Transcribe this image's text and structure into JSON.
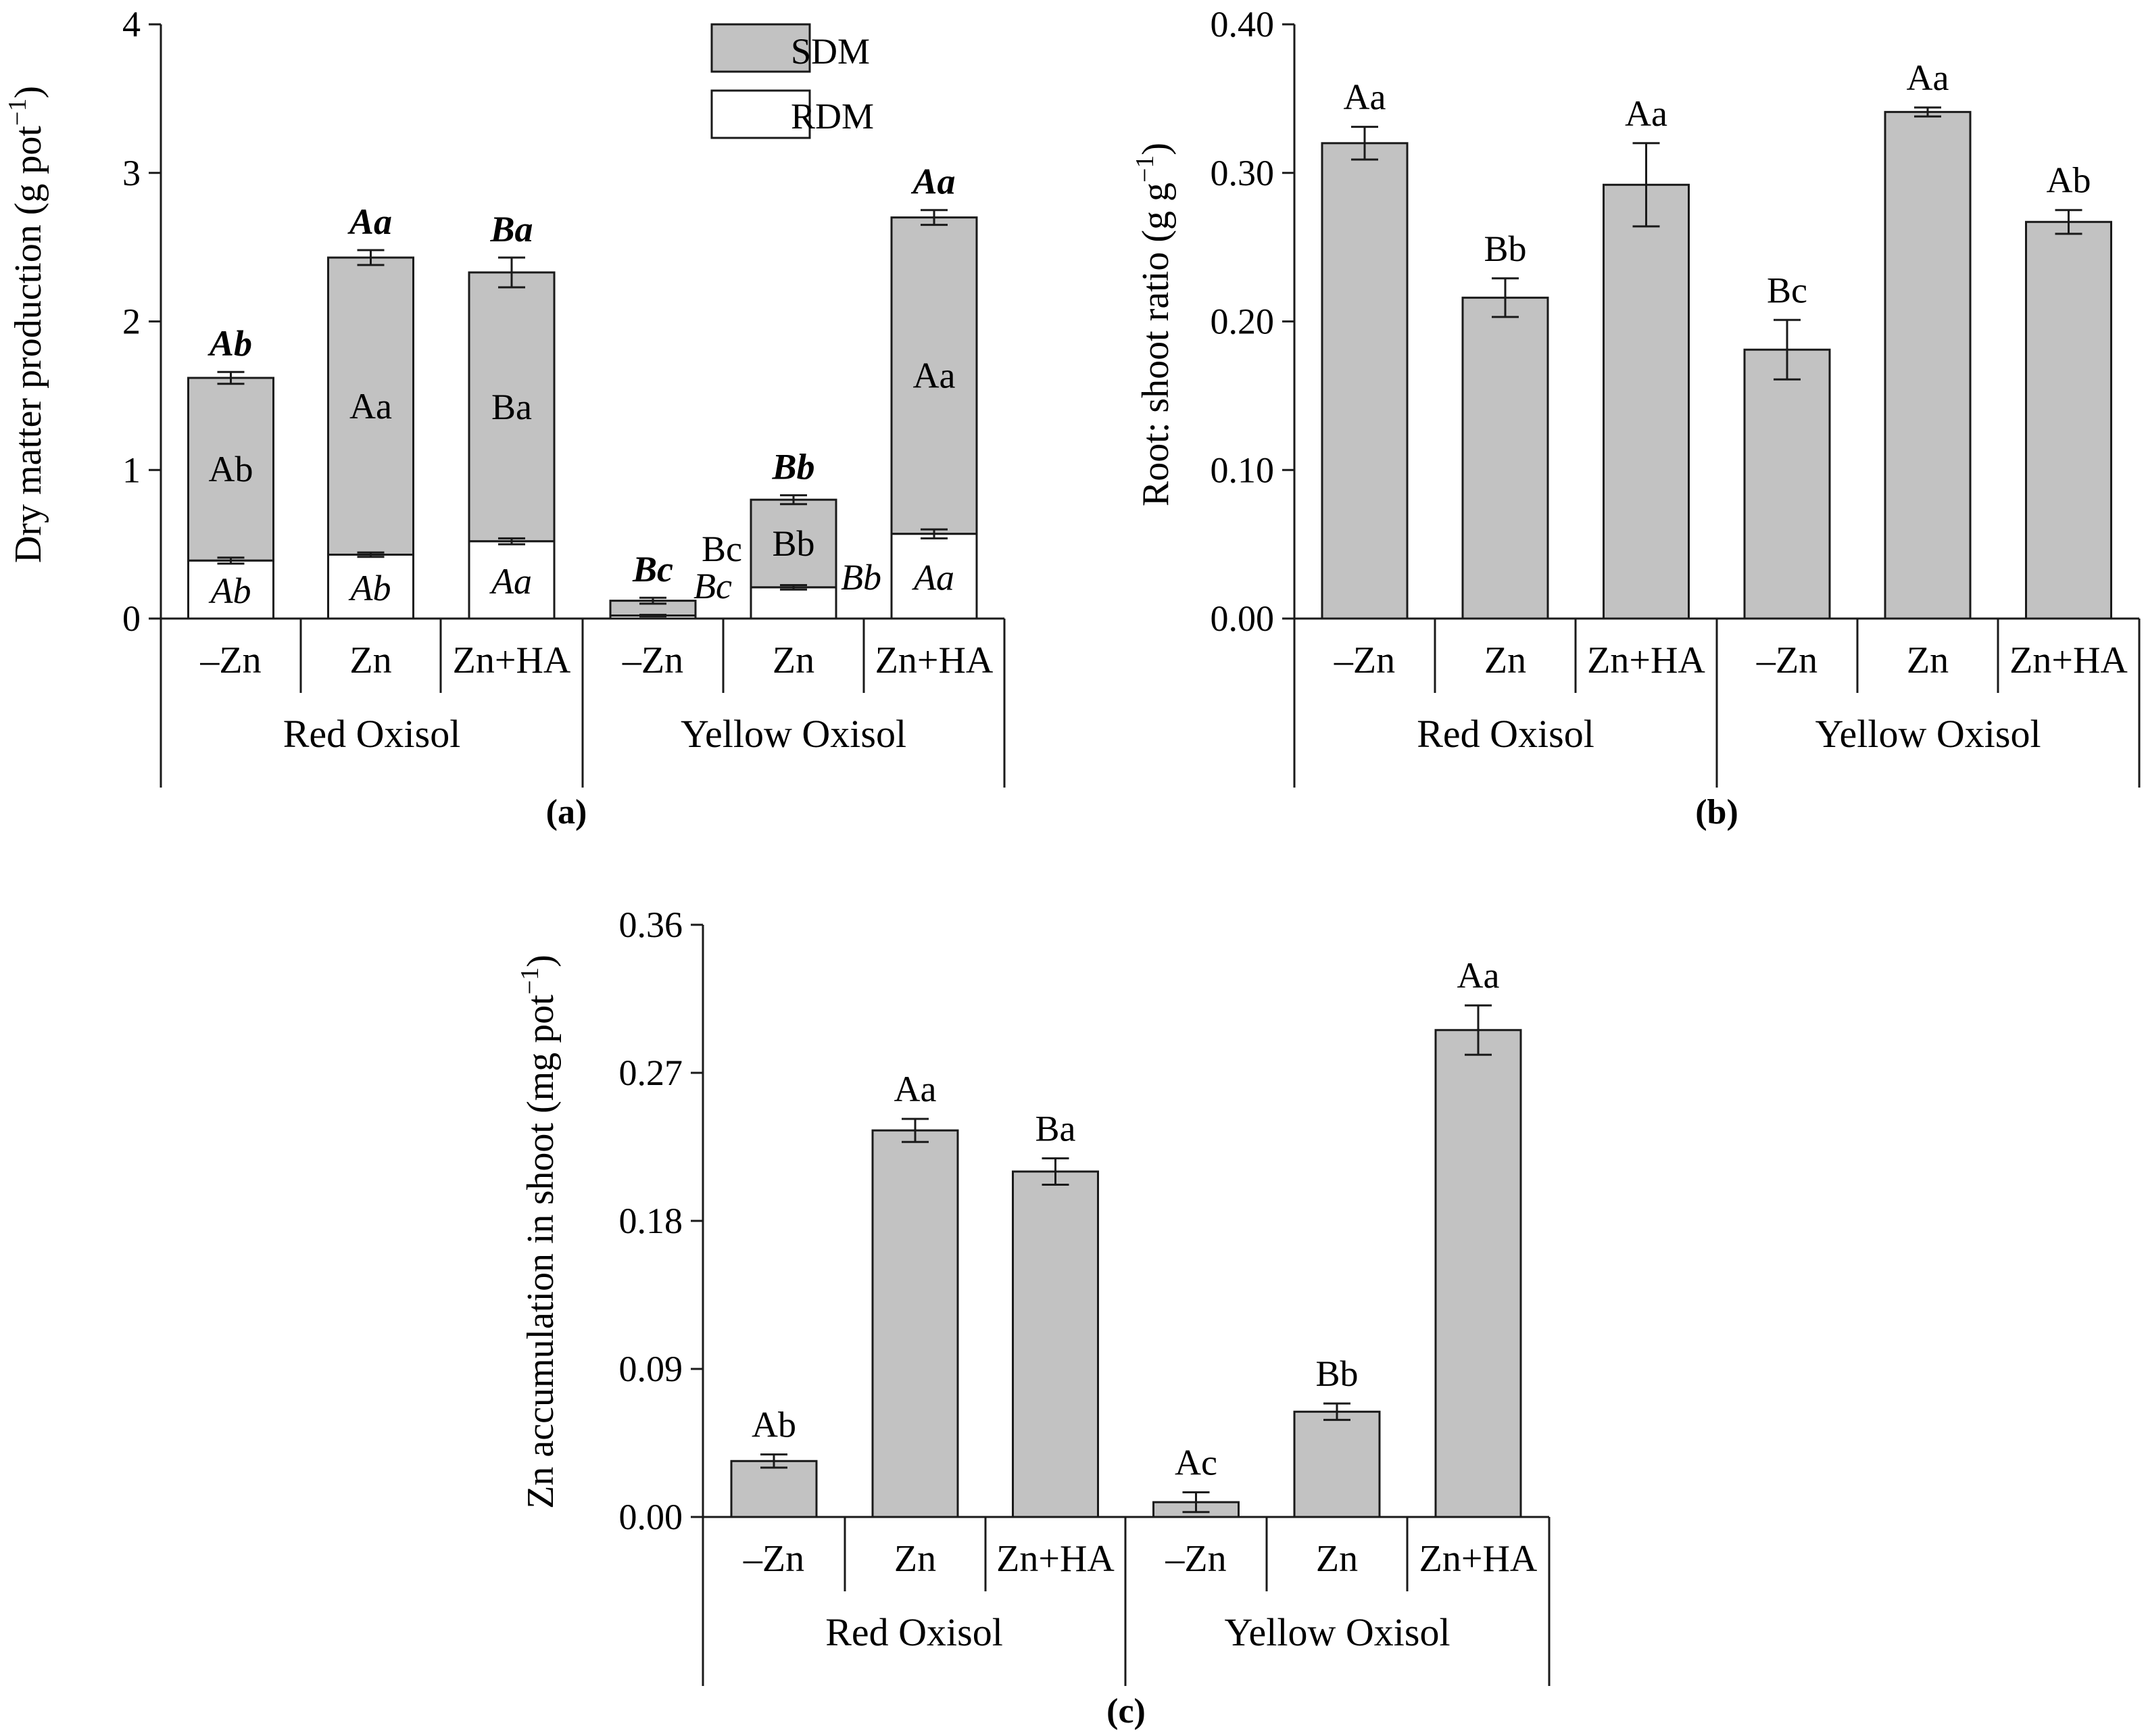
{
  "colors": {
    "bar_fill": "#c2c2c2",
    "rdm_fill": "#ffffff",
    "stroke": "#1a1a1a",
    "background": "#ffffff"
  },
  "chart_data": [
    {
      "type": "bar",
      "stacked": true,
      "panel_label": "(a)",
      "ylabel": "Dry matter production (g pot",
      "ylabel_sup": "−1",
      "ylabel_close": ")",
      "yticks": [
        "0",
        "1",
        "2",
        "3",
        "4"
      ],
      "ylim": [
        0,
        4
      ],
      "groups": [
        "Red Oxisol",
        "Yellow Oxisol"
      ],
      "categories": [
        "–Zn",
        "Zn",
        "Zn+HA",
        "–Zn",
        "Zn",
        "Zn+HA"
      ],
      "legend": {
        "position": "top-center",
        "items": [
          "SDM",
          "RDM"
        ]
      },
      "series": [
        {
          "name": "RDM",
          "values": [
            0.39,
            0.43,
            0.52,
            0.02,
            0.21,
            0.57
          ],
          "errors": [
            0.02,
            0.015,
            0.02,
            0.005,
            0.015,
            0.03
          ],
          "labels": [
            "Ab",
            "Ab",
            "Aa",
            "Bc",
            "Bb",
            "Aa"
          ]
        },
        {
          "name": "SDM",
          "values": [
            1.23,
            2.0,
            1.81,
            0.1,
            0.59,
            2.13
          ],
          "labels": [
            "Ab",
            "Aa",
            "Ba",
            "Bc",
            "Bb",
            "Aa"
          ]
        }
      ],
      "totals": [
        1.62,
        2.43,
        2.33,
        0.12,
        0.8,
        2.7
      ],
      "total_errors": [
        0.04,
        0.05,
        0.1,
        0.02,
        0.03,
        0.05
      ],
      "total_labels": [
        "Ab",
        "Aa",
        "Ba",
        "Bc",
        "Bb",
        "Aa"
      ]
    },
    {
      "type": "bar",
      "panel_label": "(b)",
      "ylabel": "Root: shoot ratio (g g",
      "ylabel_sup": "−1",
      "ylabel_close": ")",
      "yticks": [
        "0.00",
        "0.10",
        "0.20",
        "0.30",
        "0.40"
      ],
      "ylim": [
        0,
        0.4
      ],
      "groups": [
        "Red Oxisol",
        "Yellow Oxisol"
      ],
      "categories": [
        "–Zn",
        "Zn",
        "Zn+HA",
        "–Zn",
        "Zn",
        "Zn+HA"
      ],
      "values": [
        0.32,
        0.216,
        0.292,
        0.181,
        0.341,
        0.267
      ],
      "errors": [
        0.011,
        0.013,
        0.028,
        0.02,
        0.003,
        0.008
      ],
      "labels": [
        "Aa",
        "Bb",
        "Aa",
        "Bc",
        "Aa",
        "Ab"
      ]
    },
    {
      "type": "bar",
      "panel_label": "(c)",
      "ylabel": "Zn accumulation in shoot (mg pot",
      "ylabel_sup": "−1",
      "ylabel_close": ")",
      "yticks": [
        "0.00",
        "0.09",
        "0.18",
        "0.27",
        "0.36"
      ],
      "ylim": [
        0,
        0.36
      ],
      "groups": [
        "Red Oxisol",
        "Yellow Oxisol"
      ],
      "categories": [
        "–Zn",
        "Zn",
        "Zn+HA",
        "–Zn",
        "Zn",
        "Zn+HA"
      ],
      "values": [
        0.034,
        0.235,
        0.21,
        0.009,
        0.064,
        0.296
      ],
      "errors": [
        0.004,
        0.007,
        0.008,
        0.006,
        0.005,
        0.015
      ],
      "labels": [
        "Ab",
        "Aa",
        "Ba",
        "Ac",
        "Bb",
        "Aa"
      ]
    }
  ]
}
